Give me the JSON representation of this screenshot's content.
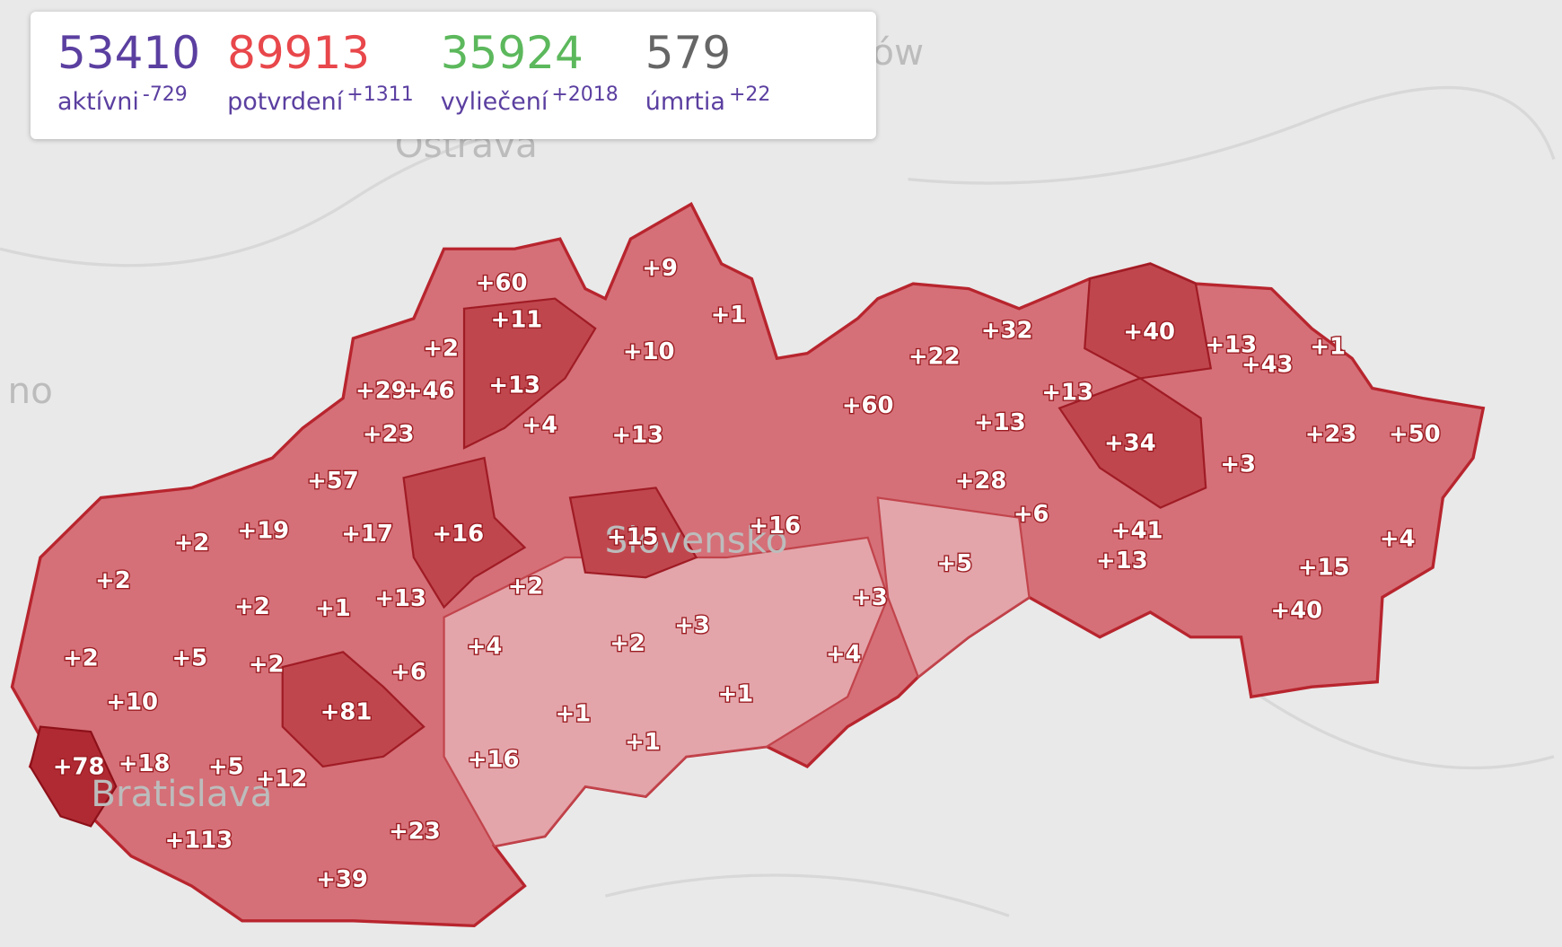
{
  "stats": [
    {
      "value": 53410,
      "label": "aktívni",
      "delta": "-729"
    },
    {
      "value": 89913,
      "label": "potvrdení",
      "delta": "+1311"
    },
    {
      "value": 35924,
      "label": "vyliečení",
      "delta": "+2018"
    },
    {
      "value": 579,
      "label": "úmrtia",
      "delta": "+22"
    }
  ],
  "places": [
    "ków",
    "Ostrava",
    "no",
    "Slovensko",
    "Bratislava"
  ],
  "districts": [
    "+60",
    "+9",
    "+11",
    "+1",
    "+2",
    "+10",
    "+13",
    "+29",
    "+46",
    "+4",
    "+13",
    "+23",
    "+57",
    "+17",
    "+16",
    "+15",
    "+16",
    "+2",
    "+19",
    "+2",
    "+2",
    "+1",
    "+13",
    "+2",
    "+2",
    "+5",
    "+2",
    "+6",
    "+4",
    "+2",
    "+3",
    "+3",
    "+4",
    "+10",
    "+81",
    "+1",
    "+1",
    "+1",
    "+78",
    "+18",
    "+5",
    "+12",
    "+16",
    "+113",
    "+23",
    "+39",
    "+22",
    "+32",
    "+60",
    "+13",
    "+40",
    "+13",
    "+43",
    "+1",
    "+13",
    "+34",
    "+3",
    "+23",
    "+50",
    "+28",
    "+6",
    "+41",
    "+13",
    "+5",
    "+4",
    "+15",
    "+40"
  ]
}
